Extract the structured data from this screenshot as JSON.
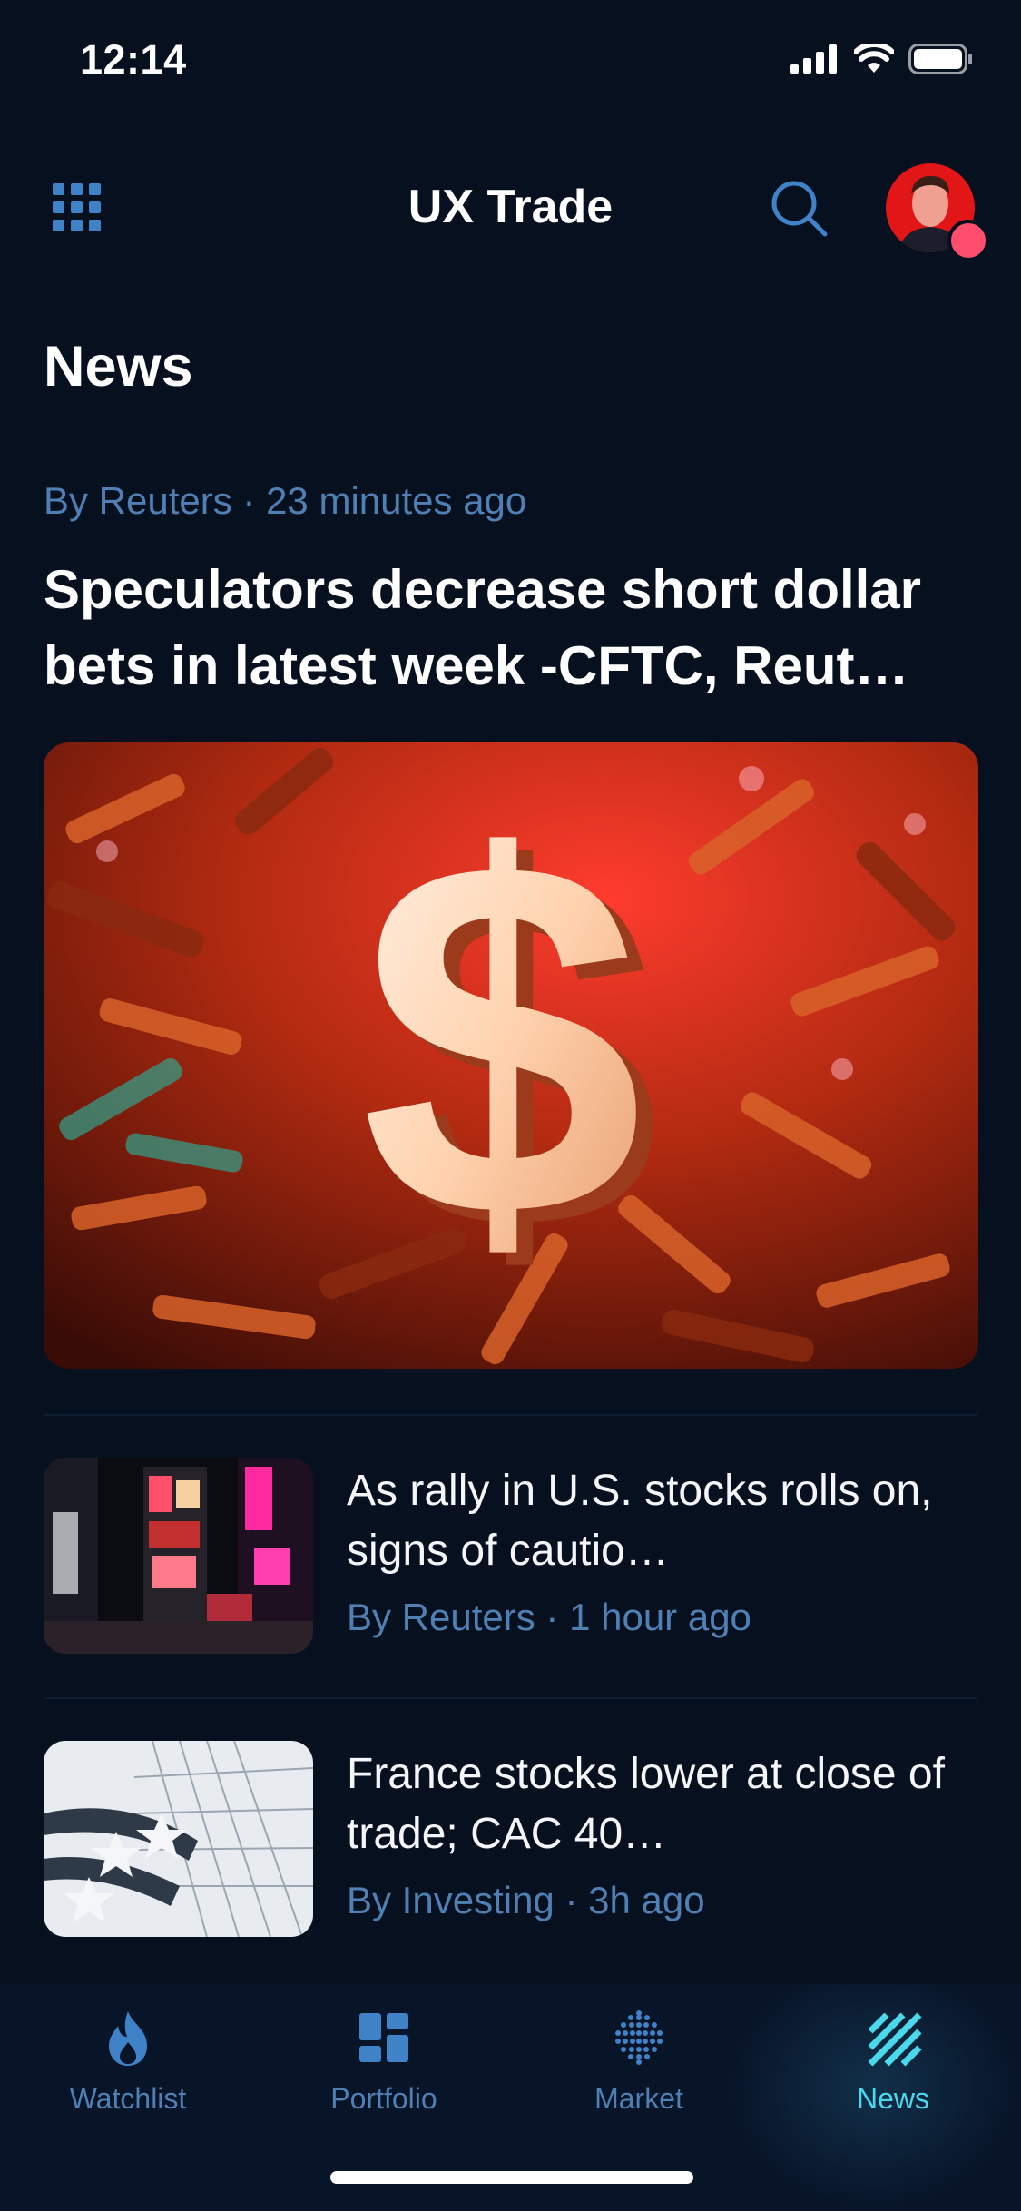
{
  "status_bar": {
    "time": "12:14"
  },
  "header": {
    "app_title": "UX Trade"
  },
  "page_title": "News",
  "featured": {
    "source": "By Reuters",
    "time_ago": "23 minutes ago",
    "title": "Speculators decrease short dollar bets in latest week -CFTC, Reut…"
  },
  "news_list": [
    {
      "title": "As rally in U.S. stocks rolls on, signs of cautio…",
      "source": "By Reuters",
      "time_ago": "1 hour ago"
    },
    {
      "title": "France stocks lower at close of trade; CAC 40…",
      "source": "By Investing",
      "time_ago": "3h ago"
    }
  ],
  "bottom_nav": {
    "items": [
      {
        "label": "Watchlist",
        "icon": "flame-icon"
      },
      {
        "label": "Portfolio",
        "icon": "grid-blocks-icon"
      },
      {
        "label": "Market",
        "icon": "dots-globe-icon"
      },
      {
        "label": "News",
        "icon": "stripes-icon",
        "active": true
      }
    ]
  },
  "colors": {
    "background": "#06101f",
    "meta_text": "#4f7fb3",
    "accent": "#3f82c8",
    "active_tab": "#4ad8ec",
    "notification": "#ff4d6d"
  }
}
